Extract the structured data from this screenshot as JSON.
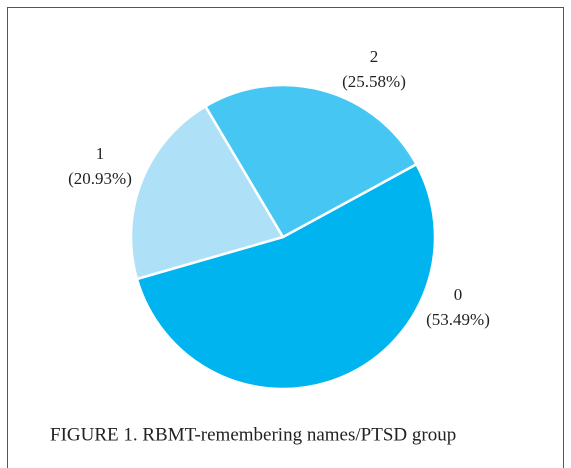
{
  "chart_data": {
    "type": "pie",
    "title": "FIGURE 1. RBMT-remembering names/PTSD group",
    "categories": [
      "0",
      "1",
      "2"
    ],
    "values": [
      53.49,
      20.93,
      25.58
    ],
    "value_labels": [
      "(53.49%)",
      "(20.93%)",
      "(25.58%)"
    ],
    "colors": [
      "#00b5ef",
      "#aee1f8",
      "#45c6f3"
    ]
  }
}
